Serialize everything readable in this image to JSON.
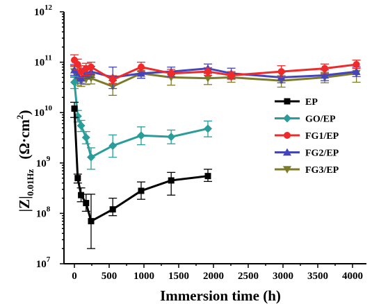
{
  "chart_data": {
    "type": "line",
    "xlabel": "Immersion time (h)",
    "ylabel_main": "|Z|",
    "ylabel_sub": "0.01Hz",
    "ylabel_unit_open": "(Ω·cm",
    "ylabel_unit_sup": "2",
    "ylabel_unit_close": ")",
    "xlim": [
      -150,
      4200
    ],
    "ylim_log10": [
      7,
      12
    ],
    "y_scale": "log",
    "x_ticks": [
      "0",
      "500",
      "1000",
      "1500",
      "2000",
      "2500",
      "3000",
      "3500",
      "4000"
    ],
    "y_ticks": [
      {
        "base": "10",
        "exp": "7"
      },
      {
        "base": "10",
        "exp": "8"
      },
      {
        "base": "10",
        "exp": "9"
      },
      {
        "base": "10",
        "exp": "10"
      },
      {
        "base": "10",
        "exp": "11"
      },
      {
        "base": "10",
        "exp": "12"
      }
    ],
    "legend_position": "right-middle",
    "series": [
      {
        "name": "EP",
        "color": "#000000",
        "marker": "square",
        "x": [
          0,
          48,
          96,
          168,
          240,
          552,
          960,
          1392,
          1920
        ],
        "y": [
          12000000000.0,
          500000000.0,
          230000000.0,
          160000000.0,
          70000000.0,
          120000000.0,
          280000000.0,
          450000000.0,
          550000000.0
        ],
        "err_lo": [
          8000000000.0,
          400000000.0,
          170000000.0,
          110000000.0,
          20000000.0,
          90000000.0,
          190000000.0,
          230000000.0,
          430000000.0
        ],
        "err_hi": [
          16000000000.0,
          600000000.0,
          320000000.0,
          240000000.0,
          240000000.0,
          200000000.0,
          420000000.0,
          650000000.0,
          750000000.0
        ]
      },
      {
        "name": "GO/EP",
        "color": "#2a9d9a",
        "marker": "diamond",
        "x": [
          0,
          48,
          96,
          168,
          240,
          552,
          960,
          1392,
          1920
        ],
        "y": [
          40000000000.0,
          8500000000.0,
          5500000000.0,
          3200000000.0,
          1300000000.0,
          2200000000.0,
          3500000000.0,
          3300000000.0,
          4800000000.0
        ],
        "err_lo": [
          30000000000.0,
          6500000000.0,
          4200000000.0,
          2400000000.0,
          750000000.0,
          1300000000.0,
          2300000000.0,
          2400000000.0,
          3300000000.0
        ],
        "err_hi": [
          52000000000.0,
          11000000000.0,
          7000000000.0,
          4200000000.0,
          2000000000.0,
          3600000000.0,
          5200000000.0,
          4500000000.0,
          6800000000.0
        ]
      },
      {
        "name": "FG1/EP",
        "color": "#ee2a2a",
        "marker": "circle",
        "x": [
          0,
          48,
          96,
          168,
          240,
          552,
          960,
          1392,
          1920,
          2256,
          2976,
          3600,
          4056
        ],
        "y": [
          110000000000.0,
          90000000000.0,
          65000000000.0,
          75000000000.0,
          80000000000.0,
          45000000000.0,
          80000000000.0,
          60000000000.0,
          65000000000.0,
          55000000000.0,
          65000000000.0,
          75000000000.0,
          90000000000.0
        ],
        "err_lo": [
          85000000000.0,
          70000000000.0,
          50000000000.0,
          55000000000.0,
          60000000000.0,
          38000000000.0,
          65000000000.0,
          50000000000.0,
          55000000000.0,
          46000000000.0,
          50000000000.0,
          60000000000.0,
          75000000000.0
        ],
        "err_hi": [
          140000000000.0,
          115000000000.0,
          85000000000.0,
          95000000000.0,
          100000000000.0,
          54000000000.0,
          100000000000.0,
          72000000000.0,
          78000000000.0,
          65000000000.0,
          85000000000.0,
          92000000000.0,
          110000000000.0
        ]
      },
      {
        "name": "FG2/EP",
        "color": "#4444bb",
        "marker": "triangle-up",
        "x": [
          0,
          48,
          96,
          168,
          240,
          552,
          960,
          1392,
          1920,
          2256,
          2976,
          3600,
          4056
        ],
        "y": [
          70000000000.0,
          55000000000.0,
          48000000000.0,
          60000000000.0,
          65000000000.0,
          50000000000.0,
          60000000000.0,
          65000000000.0,
          75000000000.0,
          60000000000.0,
          50000000000.0,
          55000000000.0,
          65000000000.0
        ],
        "err_lo": [
          55000000000.0,
          43000000000.0,
          38000000000.0,
          47000000000.0,
          50000000000.0,
          30000000000.0,
          48000000000.0,
          52000000000.0,
          60000000000.0,
          47000000000.0,
          39000000000.0,
          43000000000.0,
          52000000000.0
        ],
        "err_hi": [
          90000000000.0,
          70000000000.0,
          60000000000.0,
          76000000000.0,
          83000000000.0,
          80000000000.0,
          75000000000.0,
          80000000000.0,
          92000000000.0,
          76000000000.0,
          63000000000.0,
          70000000000.0,
          80000000000.0
        ]
      },
      {
        "name": "FG3/EP",
        "color": "#7d7a2a",
        "marker": "triangle-down",
        "x": [
          0,
          48,
          96,
          168,
          240,
          552,
          960,
          1392,
          1920,
          2256,
          2976,
          3600,
          4056
        ],
        "y": [
          65000000000.0,
          45000000000.0,
          42000000000.0,
          46000000000.0,
          48000000000.0,
          33000000000.0,
          60000000000.0,
          50000000000.0,
          48000000000.0,
          50000000000.0,
          43000000000.0,
          50000000000.0,
          60000000000.0
        ],
        "err_lo": [
          50000000000.0,
          35000000000.0,
          33000000000.0,
          36000000000.0,
          37000000000.0,
          22000000000.0,
          48000000000.0,
          35000000000.0,
          36000000000.0,
          40000000000.0,
          32000000000.0,
          39000000000.0,
          40000000000.0
        ],
        "err_hi": [
          82000000000.0,
          57000000000.0,
          53000000000.0,
          59000000000.0,
          61000000000.0,
          43000000000.0,
          74000000000.0,
          64000000000.0,
          60000000000.0,
          62000000000.0,
          54000000000.0,
          63000000000.0,
          80000000000.0
        ]
      }
    ]
  }
}
